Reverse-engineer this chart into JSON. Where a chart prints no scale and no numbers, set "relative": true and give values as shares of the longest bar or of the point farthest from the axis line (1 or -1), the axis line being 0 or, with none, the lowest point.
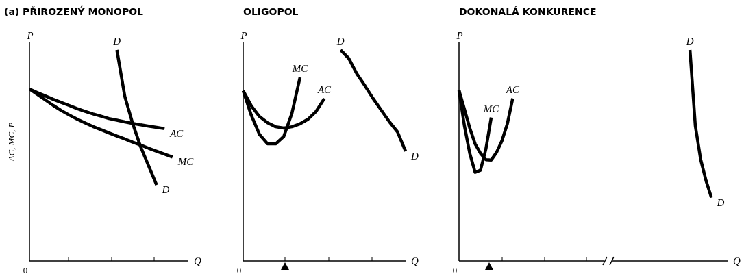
{
  "chart_data": [
    {
      "type": "line",
      "title": "(a) PŘIROZENÝ MONOPOL",
      "ylabel": "AC, MC, P",
      "xlabel": "Q",
      "relative": true,
      "legend": false,
      "annotations": [
        "P",
        "D",
        "0"
      ],
      "categories": [
        null,
        null,
        null,
        null,
        null,
        null,
        null,
        null,
        null,
        null,
        null,
        null,
        null,
        null,
        null,
        null,
        null,
        null,
        null,
        null,
        null
      ],
      "series": [
        {
          "name": "AC",
          "color": "#000000",
          "values": [
            0.815,
            0.798,
            0.782,
            0.766,
            0.751,
            0.737,
            0.722,
            0.709,
            0.697,
            0.686,
            0.675,
            0.667,
            0.659,
            0.652,
            0.645,
            0.639,
            0.633,
            0.627,
            null,
            null,
            null
          ]
        },
        {
          "name": "MC",
          "color": "#000000",
          "values": [
            0.815,
            0.789,
            0.763,
            0.737,
            0.713,
            0.692,
            0.672,
            0.654,
            0.637,
            0.622,
            0.607,
            0.592,
            0.578,
            0.563,
            0.549,
            0.534,
            0.52,
            0.506,
            0.492,
            null,
            null
          ]
        },
        {
          "name": "D",
          "color": "#000000",
          "values": [
            null,
            null,
            null,
            null,
            null,
            null,
            null,
            null,
            null,
            null,
            null,
            1,
            0.78,
            0.65,
            0.54,
            0.45,
            0.36,
            null,
            null,
            null,
            null
          ]
        }
      ]
    },
    {
      "type": "line",
      "title": "OLIGOPOL",
      "xlabel": "Q",
      "relative": true,
      "legend": false,
      "annotations": [
        "P",
        "D",
        "0"
      ],
      "categories": [
        null,
        null,
        null,
        null,
        null,
        null,
        null,
        null,
        null,
        null,
        null,
        null,
        null,
        null,
        null,
        null,
        null,
        null,
        null,
        null,
        null
      ],
      "series": [
        {
          "name": "MC",
          "color": "#000000",
          "values": [
            0.807,
            0.69,
            0.6,
            0.555,
            0.555,
            0.59,
            0.7,
            0.87,
            null,
            null,
            null,
            null,
            null,
            null,
            null,
            null,
            null,
            null,
            null,
            null,
            null
          ]
        },
        {
          "name": "AC",
          "color": "#000000",
          "values": [
            0.807,
            0.735,
            0.685,
            0.655,
            0.636,
            0.63,
            0.636,
            0.65,
            0.672,
            0.71,
            0.77,
            null,
            null,
            null,
            null,
            null,
            null,
            null,
            null,
            null,
            null
          ]
        },
        {
          "name": "D",
          "color": "#000000",
          "values": [
            null,
            null,
            null,
            null,
            null,
            null,
            null,
            null,
            null,
            null,
            null,
            null,
            1,
            0.96,
            0.887,
            0.83,
            0.77,
            0.715,
            0.66,
            0.612,
            0.52
          ]
        }
      ]
    },
    {
      "type": "line",
      "title": "DOKONALÁ KONKURENCE",
      "xlabel": "Q",
      "relative": true,
      "legend": false,
      "annotations": [
        "P",
        "D",
        "0"
      ],
      "categories": [
        null,
        null,
        null,
        null,
        null,
        null,
        null,
        null,
        null,
        null,
        null,
        null,
        null,
        null,
        null,
        null,
        null,
        null,
        null,
        null,
        null,
        null,
        null,
        null,
        null,
        null,
        null,
        null,
        null,
        null,
        null,
        null,
        null,
        null,
        null,
        null,
        null,
        null,
        null,
        null,
        null,
        null,
        null,
        null,
        null,
        null,
        null,
        null,
        null,
        null,
        null
      ],
      "series": [
        {
          "name": "AC",
          "color": "#000000",
          "values": [
            0.808,
            0.72,
            0.63,
            0.555,
            0.51,
            0.48,
            0.478,
            0.515,
            0.57,
            0.65,
            0.77,
            null,
            null,
            null,
            null,
            null,
            null,
            null,
            null,
            null,
            null,
            null,
            null,
            null,
            null,
            null,
            null,
            null,
            null,
            null,
            null,
            null,
            null,
            null,
            null,
            null,
            null,
            null,
            null,
            null,
            null,
            null,
            null,
            null,
            null,
            null,
            null,
            null,
            null,
            null,
            null
          ]
        },
        {
          "name": "MC",
          "color": "#000000",
          "values": [
            0.808,
            0.642,
            0.51,
            0.42,
            0.43,
            0.53,
            0.68,
            null,
            null,
            null,
            null,
            null,
            null,
            null,
            null,
            null,
            null,
            null,
            null,
            null,
            null,
            null,
            null,
            null,
            null,
            null,
            null,
            null,
            null,
            null,
            null,
            null,
            null,
            null,
            null,
            null,
            null,
            null,
            null,
            null,
            null,
            null,
            null,
            null,
            null,
            null,
            null,
            null,
            null,
            null,
            null
          ]
        },
        {
          "name": "D",
          "color": "#000000",
          "values": [
            null,
            null,
            null,
            null,
            null,
            null,
            null,
            null,
            null,
            null,
            null,
            null,
            null,
            null,
            null,
            null,
            null,
            null,
            null,
            null,
            null,
            null,
            null,
            null,
            null,
            null,
            null,
            null,
            null,
            null,
            null,
            null,
            null,
            null,
            null,
            null,
            null,
            null,
            null,
            null,
            null,
            null,
            null,
            1,
            0.64,
            0.48,
            0.38,
            0.3,
            null,
            null,
            null
          ]
        }
      ]
    }
  ]
}
